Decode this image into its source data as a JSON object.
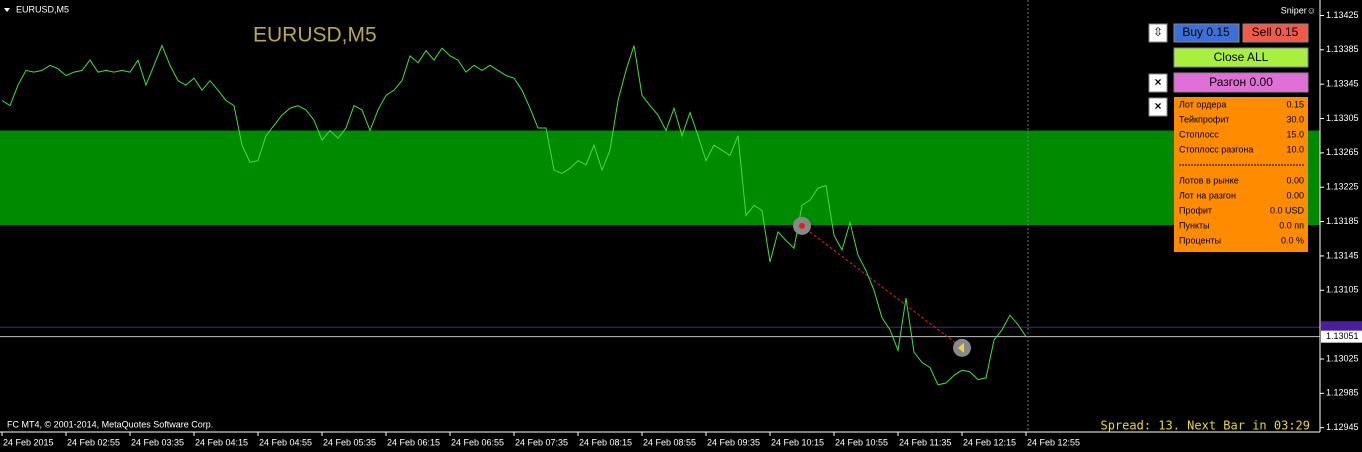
{
  "window_title": "EURUSD,M5",
  "sniper": "Sniper☺",
  "copyright": "FC MT4, © 2001-2014, MetaQuotes Software Corp.",
  "spread": "Spread: 13. Next Bar in 03:29",
  "buttons": {
    "arrows": "⇳",
    "buy": "Buy 0.15",
    "sell": "Sell 0.15",
    "close_all": "Close ALL",
    "close1": "×",
    "close2": "×",
    "razgon": "Разгон 0.00"
  },
  "panel": {
    "rows": [
      [
        "Лот ордера",
        "0.15"
      ],
      [
        "Тейкпрофит",
        "30.0"
      ],
      [
        "Стоплосс",
        "15.0"
      ],
      [
        "Стоплосс разгона",
        "10.0"
      ]
    ],
    "rows2": [
      [
        "Лотов в рынке",
        "0.00"
      ],
      [
        "Лот на разгон",
        "0.00"
      ],
      [
        "Профит",
        "0.0 USD"
      ],
      [
        "Пункты",
        "0.0 пп"
      ],
      [
        "Проценты",
        "0.0 %"
      ]
    ]
  },
  "chart_data": {
    "type": "line",
    "title": "EURUSD,M5",
    "color": "#3ee03e",
    "categories": [
      "24 Feb 2015",
      null,
      null,
      null,
      null,
      null,
      null,
      null,
      "24 Feb 02:55",
      null,
      null,
      null,
      null,
      null,
      null,
      null,
      "24 Feb 03:35",
      null,
      null,
      null,
      null,
      null,
      null,
      null,
      "24 Feb 04:15",
      null,
      null,
      null,
      null,
      null,
      null,
      null,
      "24 Feb 04:55",
      null,
      null,
      null,
      null,
      null,
      null,
      null,
      "24 Feb 05:35",
      null,
      null,
      null,
      null,
      null,
      null,
      null,
      "24 Feb 06:15",
      null,
      null,
      null,
      null,
      null,
      null,
      null,
      "24 Feb 06:55",
      null,
      null,
      null,
      null,
      null,
      null,
      null,
      "24 Feb 07:35",
      null,
      null,
      null,
      null,
      null,
      null,
      null,
      "24 Feb 08:15",
      null,
      null,
      null,
      null,
      null,
      null,
      null,
      "24 Feb 08:55",
      null,
      null,
      null,
      null,
      null,
      null,
      null,
      "24 Feb 09:35",
      null,
      null,
      null,
      null,
      null,
      null,
      null,
      "24 Feb 10:15",
      null,
      null,
      null,
      null,
      null,
      null,
      null,
      "24 Feb 10:55",
      null,
      null,
      null,
      null,
      null,
      null,
      null,
      "24 Feb 11:35",
      null,
      null,
      null,
      null,
      null,
      null,
      null,
      "24 Feb 12:15",
      null,
      null,
      null,
      null,
      null,
      null,
      null,
      "24 Feb 12:55"
    ],
    "values": [
      1.13326,
      1.1332,
      1.13344,
      1.13361,
      1.13359,
      1.13361,
      1.13367,
      1.13363,
      1.13355,
      1.13359,
      1.13361,
      1.13373,
      1.13359,
      1.13361,
      1.13359,
      1.13361,
      1.13359,
      1.13373,
      1.13344,
      1.13367,
      1.1339,
      1.13367,
      1.13349,
      1.13344,
      1.13352,
      1.13338,
      1.13349,
      1.13338,
      1.13326,
      1.1332,
      1.13274,
      1.13254,
      1.13256,
      1.13285,
      1.13297,
      1.13309,
      1.13317,
      1.1332,
      1.13315,
      1.13303,
      1.1328,
      1.13291,
      1.13282,
      1.13294,
      1.1332,
      1.13315,
      1.13291,
      1.13315,
      1.13332,
      1.13338,
      1.13349,
      1.13378,
      1.1337,
      1.13384,
      1.13373,
      1.13387,
      1.13378,
      1.13373,
      1.13359,
      1.13367,
      1.13361,
      1.13367,
      1.13361,
      1.13355,
      1.13352,
      1.13338,
      1.13317,
      1.13294,
      1.13294,
      1.13245,
      1.13241,
      1.13247,
      1.13256,
      1.13251,
      1.13274,
      1.13245,
      1.13268,
      1.13326,
      1.13361,
      1.1339,
      1.13332,
      1.1332,
      1.13309,
      1.13291,
      1.13317,
      1.13285,
      1.13312,
      1.13285,
      1.13256,
      1.13274,
      1.13268,
      1.13262,
      1.13285,
      1.13192,
      1.13204,
      1.13198,
      1.13138,
      1.13173,
      1.13163,
      1.13154,
      1.13204,
      1.1321,
      1.13224,
      1.13227,
      1.13169,
      1.13152,
      1.13184,
      1.13146,
      1.13128,
      1.13105,
      1.13073,
      1.13059,
      1.13035,
      1.13096,
      1.13033,
      1.13021,
      1.13015,
      1.12995,
      1.12997,
      1.13006,
      1.13012,
      1.1301,
      1.13001,
      1.13003,
      1.13047,
      1.13059,
      1.13076,
      1.13065,
      1.13051
    ],
    "ylim": [
      1.1294,
      1.13443
    ],
    "yticks": [
      1.13425,
      1.13385,
      1.13345,
      1.13305,
      1.13265,
      1.13225,
      1.13185,
      1.13145,
      1.13105,
      1.13025,
      1.12985,
      1.12945
    ],
    "zone": [
      1.13181,
      1.13291
    ],
    "zone_color": "#008a00",
    "hline": 1.13062,
    "hline_color": "#4b1e9e",
    "price_line": 1.13051,
    "trades": [
      {
        "open_bar": 100,
        "open_price": 1.1318,
        "close_bar": 120,
        "close_price": 1.13038
      }
    ]
  }
}
